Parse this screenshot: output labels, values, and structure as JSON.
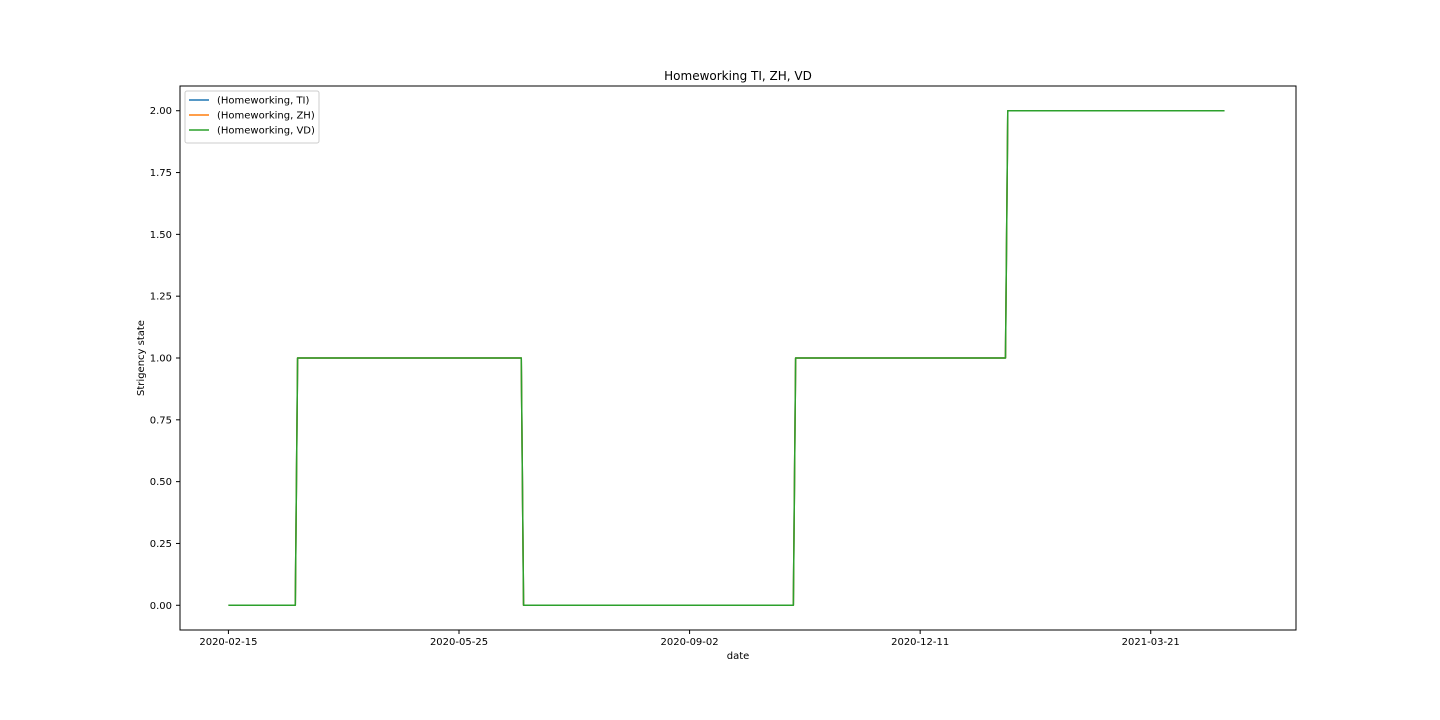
{
  "chart_data": {
    "type": "line",
    "title": "Homeworking TI, ZH, VD",
    "xlabel": "date",
    "ylabel": "Strigency state",
    "x_ticks": [
      "2020-02-15",
      "2020-05-25",
      "2020-09-02",
      "2020-12-11",
      "2021-03-21"
    ],
    "y_ticks": [
      "0.00",
      "0.25",
      "0.50",
      "0.75",
      "1.00",
      "1.25",
      "1.50",
      "1.75",
      "2.00"
    ],
    "xlim": [
      "2020-01-25",
      "2021-05-23"
    ],
    "ylim": [
      -0.1,
      2.1
    ],
    "grid": false,
    "legend_position": "upper-left",
    "series": [
      {
        "name": "(Homeworking, TI)",
        "color": "#1f77b4",
        "points": [
          [
            "2020-02-15",
            0
          ],
          [
            "2020-03-15",
            0
          ],
          [
            "2020-03-16",
            1
          ],
          [
            "2020-06-21",
            1
          ],
          [
            "2020-06-22",
            0
          ],
          [
            "2020-10-17",
            0
          ],
          [
            "2020-10-18",
            1
          ],
          [
            "2021-01-17",
            1
          ],
          [
            "2021-01-18",
            2
          ],
          [
            "2021-04-22",
            2
          ]
        ]
      },
      {
        "name": "(Homeworking, ZH)",
        "color": "#ff7f0e",
        "points": [
          [
            "2020-02-15",
            0
          ],
          [
            "2020-03-15",
            0
          ],
          [
            "2020-03-16",
            1
          ],
          [
            "2020-06-21",
            1
          ],
          [
            "2020-06-22",
            0
          ],
          [
            "2020-10-17",
            0
          ],
          [
            "2020-10-18",
            1
          ],
          [
            "2021-01-17",
            1
          ],
          [
            "2021-01-18",
            2
          ],
          [
            "2021-04-22",
            2
          ]
        ]
      },
      {
        "name": "(Homeworking, VD)",
        "color": "#2ca02c",
        "points": [
          [
            "2020-02-15",
            0
          ],
          [
            "2020-03-15",
            0
          ],
          [
            "2020-03-16",
            1
          ],
          [
            "2020-06-21",
            1
          ],
          [
            "2020-06-22",
            0
          ],
          [
            "2020-10-17",
            0
          ],
          [
            "2020-10-18",
            1
          ],
          [
            "2021-01-17",
            1
          ],
          [
            "2021-01-18",
            2
          ],
          [
            "2021-04-22",
            2
          ]
        ]
      }
    ]
  }
}
